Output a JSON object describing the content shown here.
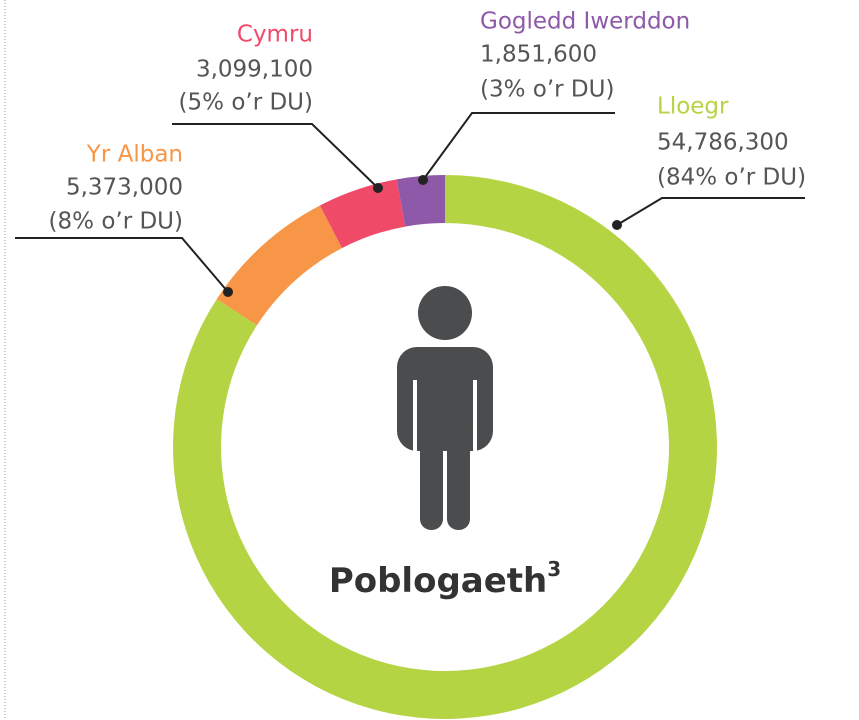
{
  "chart_data": {
    "type": "donut",
    "title": "Poblogaeth",
    "title_note": "3",
    "categories": [
      "Lloegr",
      "Yr Alban",
      "Cymru",
      "Gogledd Iwerddon"
    ],
    "values": [
      54786300,
      5373000,
      3099100,
      1851600
    ],
    "value_labels": [
      "54,786,300",
      "5,373,000",
      "3,099,100",
      "1,851,600"
    ],
    "share_labels": [
      "(84% o’r DU)",
      "(8% o’r DU)",
      "(5% o’r DU)",
      "(3% o’r DU)"
    ],
    "colors": [
      "#b5d443",
      "#f79646",
      "#ef4a68",
      "#8e59a8"
    ]
  }
}
